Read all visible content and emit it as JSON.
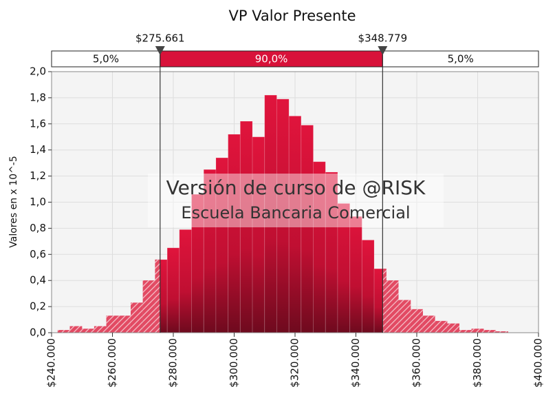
{
  "chart_data": {
    "type": "histogram",
    "title": "VP Valor Presente",
    "ylabel": "Valores en x 10^-5",
    "bins": [
      242000,
      246000,
      250000,
      254000,
      258000,
      262000,
      266000,
      270000,
      274000,
      278000,
      282000,
      286000,
      290000,
      294000,
      298000,
      302000,
      306000,
      310000,
      314000,
      318000,
      322000,
      326000,
      330000,
      334000,
      338000,
      342000,
      346000,
      350000,
      354000,
      358000,
      362000,
      366000,
      370000,
      374000,
      378000,
      382000,
      386000,
      390000
    ],
    "values": [
      0.02,
      0.05,
      0.03,
      0.05,
      0.13,
      0.13,
      0.23,
      0.4,
      0.56,
      0.65,
      0.79,
      1.06,
      1.25,
      1.34,
      1.52,
      1.62,
      1.5,
      1.82,
      1.79,
      1.66,
      1.59,
      1.31,
      1.23,
      0.99,
      0.89,
      0.71,
      0.49,
      0.4,
      0.25,
      0.18,
      0.13,
      0.09,
      0.07,
      0.02,
      0.03,
      0.02,
      0.01
    ],
    "color": "#d8123a",
    "tail_color": "#e24a63",
    "xlim": [
      240000,
      400000
    ],
    "ylim": [
      0,
      2
    ],
    "xticks": [
      {
        "value": 240000,
        "label": "$240.000"
      },
      {
        "value": 260000,
        "label": "$260.000"
      },
      {
        "value": 280000,
        "label": "$280.000"
      },
      {
        "value": 300000,
        "label": "$300.000"
      },
      {
        "value": 320000,
        "label": "$320.000"
      },
      {
        "value": 340000,
        "label": "$340.000"
      },
      {
        "value": 360000,
        "label": "$360.000"
      },
      {
        "value": 380000,
        "label": "$380.000"
      },
      {
        "value": 400000,
        "label": "$400.000"
      }
    ],
    "yticks": [
      {
        "value": 0,
        "label": "0,0"
      },
      {
        "value": 0.2,
        "label": "0,2"
      },
      {
        "value": 0.4,
        "label": "0,4"
      },
      {
        "value": 0.6,
        "label": "0,6"
      },
      {
        "value": 0.8,
        "label": "0,8"
      },
      {
        "value": 1.0,
        "label": "1,0"
      },
      {
        "value": 1.2,
        "label": "1,2"
      },
      {
        "value": 1.4,
        "label": "1,4"
      },
      {
        "value": 1.6,
        "label": "1,6"
      },
      {
        "value": 1.8,
        "label": "1,8"
      },
      {
        "value": 2.0,
        "label": "2,0"
      }
    ],
    "grid": true,
    "delimiters": [
      {
        "value": 275661,
        "label": "$275.661"
      },
      {
        "value": 348779,
        "label": "$348.779"
      }
    ],
    "regions": [
      {
        "value": 5,
        "label": "5,0%"
      },
      {
        "value": 90,
        "label": "90,0%"
      },
      {
        "value": 5,
        "label": "5,0%"
      }
    ],
    "annotations": [
      "Versión de curso de @RISK",
      "Escuela Bancaria Comercial"
    ]
  }
}
